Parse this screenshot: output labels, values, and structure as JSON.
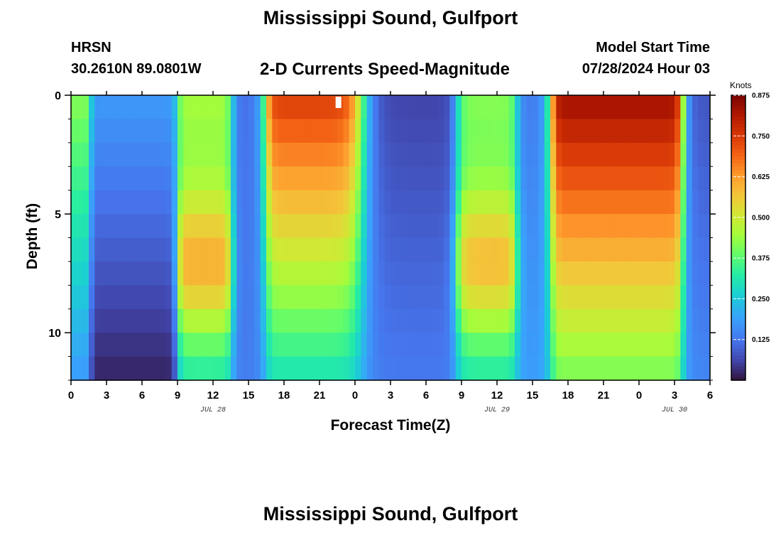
{
  "header": {
    "title": "Mississippi Sound, Gulfport",
    "station": "HRSN",
    "coordinates": "30.2610N  89.0801W",
    "subtitle": "2-D Currents Speed-Magnitude",
    "model_start_label": "Model Start Time",
    "model_start_value": "07/28/2024 Hour 03"
  },
  "footer": {
    "title": "Mississippi Sound, Gulfport"
  },
  "chart_data": {
    "type": "heatmap",
    "xlabel": "Forecast Time(Z)",
    "ylabel": "Depth (ft)",
    "x_range_hours": [
      0,
      54
    ],
    "x_tick_labels": [
      "0",
      "3",
      "6",
      "9",
      "12",
      "15",
      "18",
      "21",
      "0",
      "3",
      "6",
      "9",
      "12",
      "15",
      "18",
      "21",
      "0",
      "3",
      "6"
    ],
    "date_labels": [
      {
        "label": "JUL 28",
        "hour": 12
      },
      {
        "label": "JUL 29",
        "hour": 36
      },
      {
        "label": "JUL 30",
        "hour": 51
      }
    ],
    "y_range_ft": [
      0,
      12
    ],
    "y_tick_labels": [
      {
        "label": "0",
        "value": 0
      },
      {
        "label": "5",
        "value": 5
      },
      {
        "label": "10",
        "value": 10
      }
    ],
    "colorbar": {
      "title": "Knots",
      "min": 0.0,
      "max": 0.875,
      "tick_labels": [
        "0.875",
        "0.750",
        "0.625",
        "0.500",
        "0.375",
        "0.250",
        "0.125"
      ],
      "tick_values": [
        0.875,
        0.75,
        0.625,
        0.5,
        0.375,
        0.25,
        0.125
      ]
    },
    "grid_resolution": {
      "time_step_hours": 0.5,
      "depth_layers": 12
    },
    "speed_features_knots": [
      {
        "hour": 0.0,
        "surface": 0.42,
        "bottom": 0.18,
        "width": 0.7
      },
      {
        "hour": 5.5,
        "surface": 0.18,
        "bottom": 0.02,
        "width": 1.6
      },
      {
        "hour": 11.8,
        "surface": 0.45,
        "bottom": 0.3,
        "width": 1.3,
        "peak_depth": 7,
        "peak": 0.6
      },
      {
        "hour": 15.0,
        "surface": 0.1,
        "bottom": 0.13,
        "width": 1.0
      },
      {
        "hour": 20.5,
        "surface": 0.75,
        "bottom": 0.3,
        "width": 3.0
      },
      {
        "hour": 28.0,
        "surface": 0.06,
        "bottom": 0.13,
        "width": 2.5
      },
      {
        "hour": 35.5,
        "surface": 0.42,
        "bottom": 0.3,
        "width": 1.6,
        "peak_depth": 7,
        "peak": 0.58
      },
      {
        "hour": 39.0,
        "surface": 0.12,
        "bottom": 0.18,
        "width": 1.0
      },
      {
        "hour": 45.5,
        "surface": 0.84,
        "bottom": 0.4,
        "width": 3.3
      },
      {
        "hour": 54.0,
        "surface": 0.08,
        "bottom": 0.15,
        "width": 1.2
      }
    ]
  }
}
